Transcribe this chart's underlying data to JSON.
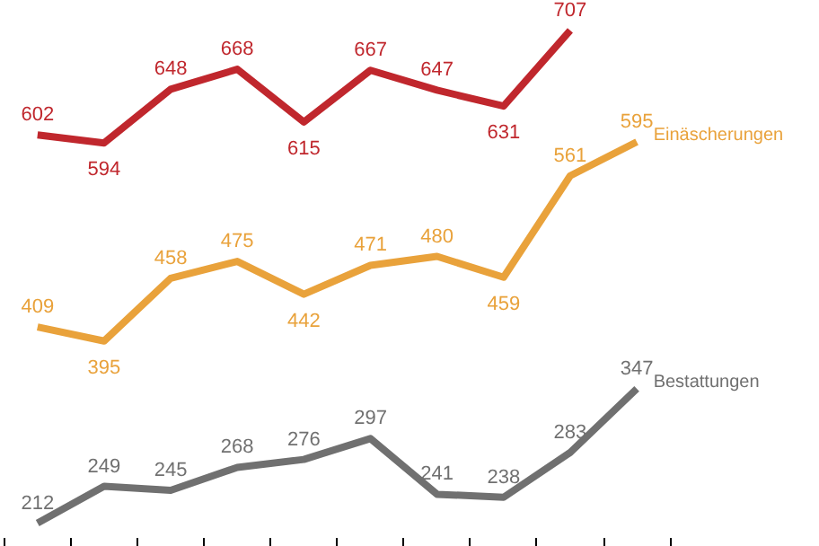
{
  "chart_data": {
    "type": "line",
    "categories": [
      null,
      null,
      null,
      null,
      null,
      null,
      null,
      null,
      null,
      null
    ],
    "grid": false,
    "tick_labels": false,
    "data_labels": true,
    "marker": "none",
    "line_style": "solid",
    "series": [
      {
        "color": "#c0272d",
        "values": [
          602,
          594,
          648,
          668,
          615,
          667,
          647,
          631,
          707,
          null
        ]
      },
      {
        "name": "Einäscherungen",
        "color": "#e9a23b",
        "values": [
          409,
          395,
          458,
          475,
          442,
          471,
          480,
          459,
          561,
          595
        ]
      },
      {
        "name": "Bestattungen",
        "color": "#707070",
        "values": [
          212,
          249,
          245,
          268,
          276,
          297,
          241,
          238,
          283,
          347
        ]
      }
    ]
  }
}
